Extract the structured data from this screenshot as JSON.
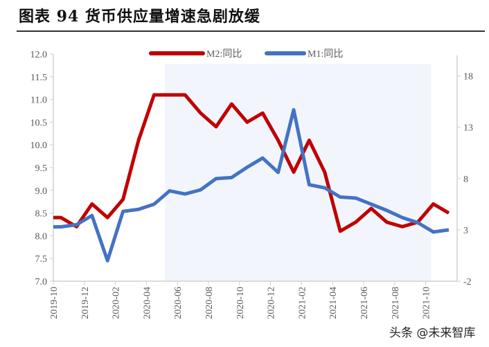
{
  "title": "图表 94 货币供应量增速急剧放缓",
  "watermark": "头条 @未来智库",
  "chart_data": {
    "type": "line",
    "categories": [
      "2019-10",
      "2019-11",
      "2019-12",
      "2020-01",
      "2020-02",
      "2020-03",
      "2020-04",
      "2020-05",
      "2020-06",
      "2020-07",
      "2020-08",
      "2020-09",
      "2020-10",
      "2020-11",
      "2020-12",
      "2021-01",
      "2021-02",
      "2021-03",
      "2021-04",
      "2021-05",
      "2021-06",
      "2021-07",
      "2021-08",
      "2021-09",
      "2021-10",
      "2021-11"
    ],
    "tick_labels": [
      "2019-10",
      "2019-12",
      "2020-02",
      "2020-04",
      "2020-06",
      "2020-08",
      "2020-10",
      "2020-12",
      "2021-02",
      "2021-04",
      "2021-06",
      "2021-08",
      "2021-10"
    ],
    "series": [
      {
        "name": "M2:同比",
        "axis": "left",
        "color": "#C00000",
        "values": [
          8.4,
          8.2,
          8.7,
          8.4,
          8.8,
          10.1,
          11.1,
          11.1,
          11.1,
          10.7,
          10.4,
          10.9,
          10.5,
          10.7,
          10.1,
          9.4,
          10.1,
          9.4,
          8.1,
          8.3,
          8.6,
          8.3,
          8.2,
          8.3,
          8.7,
          8.5
        ]
      },
      {
        "name": "M1:同比",
        "axis": "right",
        "color": "#4472C4",
        "values": [
          3.3,
          3.5,
          4.4,
          0.0,
          4.8,
          5.0,
          5.5,
          6.8,
          6.5,
          6.9,
          8.0,
          8.1,
          9.1,
          10.0,
          8.6,
          14.7,
          7.4,
          7.1,
          6.2,
          6.1,
          5.5,
          4.9,
          4.2,
          3.7,
          2.8,
          3.0
        ]
      }
    ],
    "left_axis": {
      "range": [
        7.0,
        12.0
      ],
      "ticks": [
        "7.0",
        "7.5",
        "8.0",
        "8.5",
        "9.0",
        "9.5",
        "10.0",
        "10.5",
        "11.0",
        "11.5",
        "12.0"
      ]
    },
    "right_axis": {
      "range": [
        -2,
        20
      ],
      "ticks": [
        "-2",
        "3",
        "8",
        "13",
        "18"
      ]
    },
    "shaded_region": {
      "from": "2020-05",
      "to": "2021-10",
      "color": "#F2F6FC"
    },
    "legend_position": "top",
    "grid": false
  }
}
